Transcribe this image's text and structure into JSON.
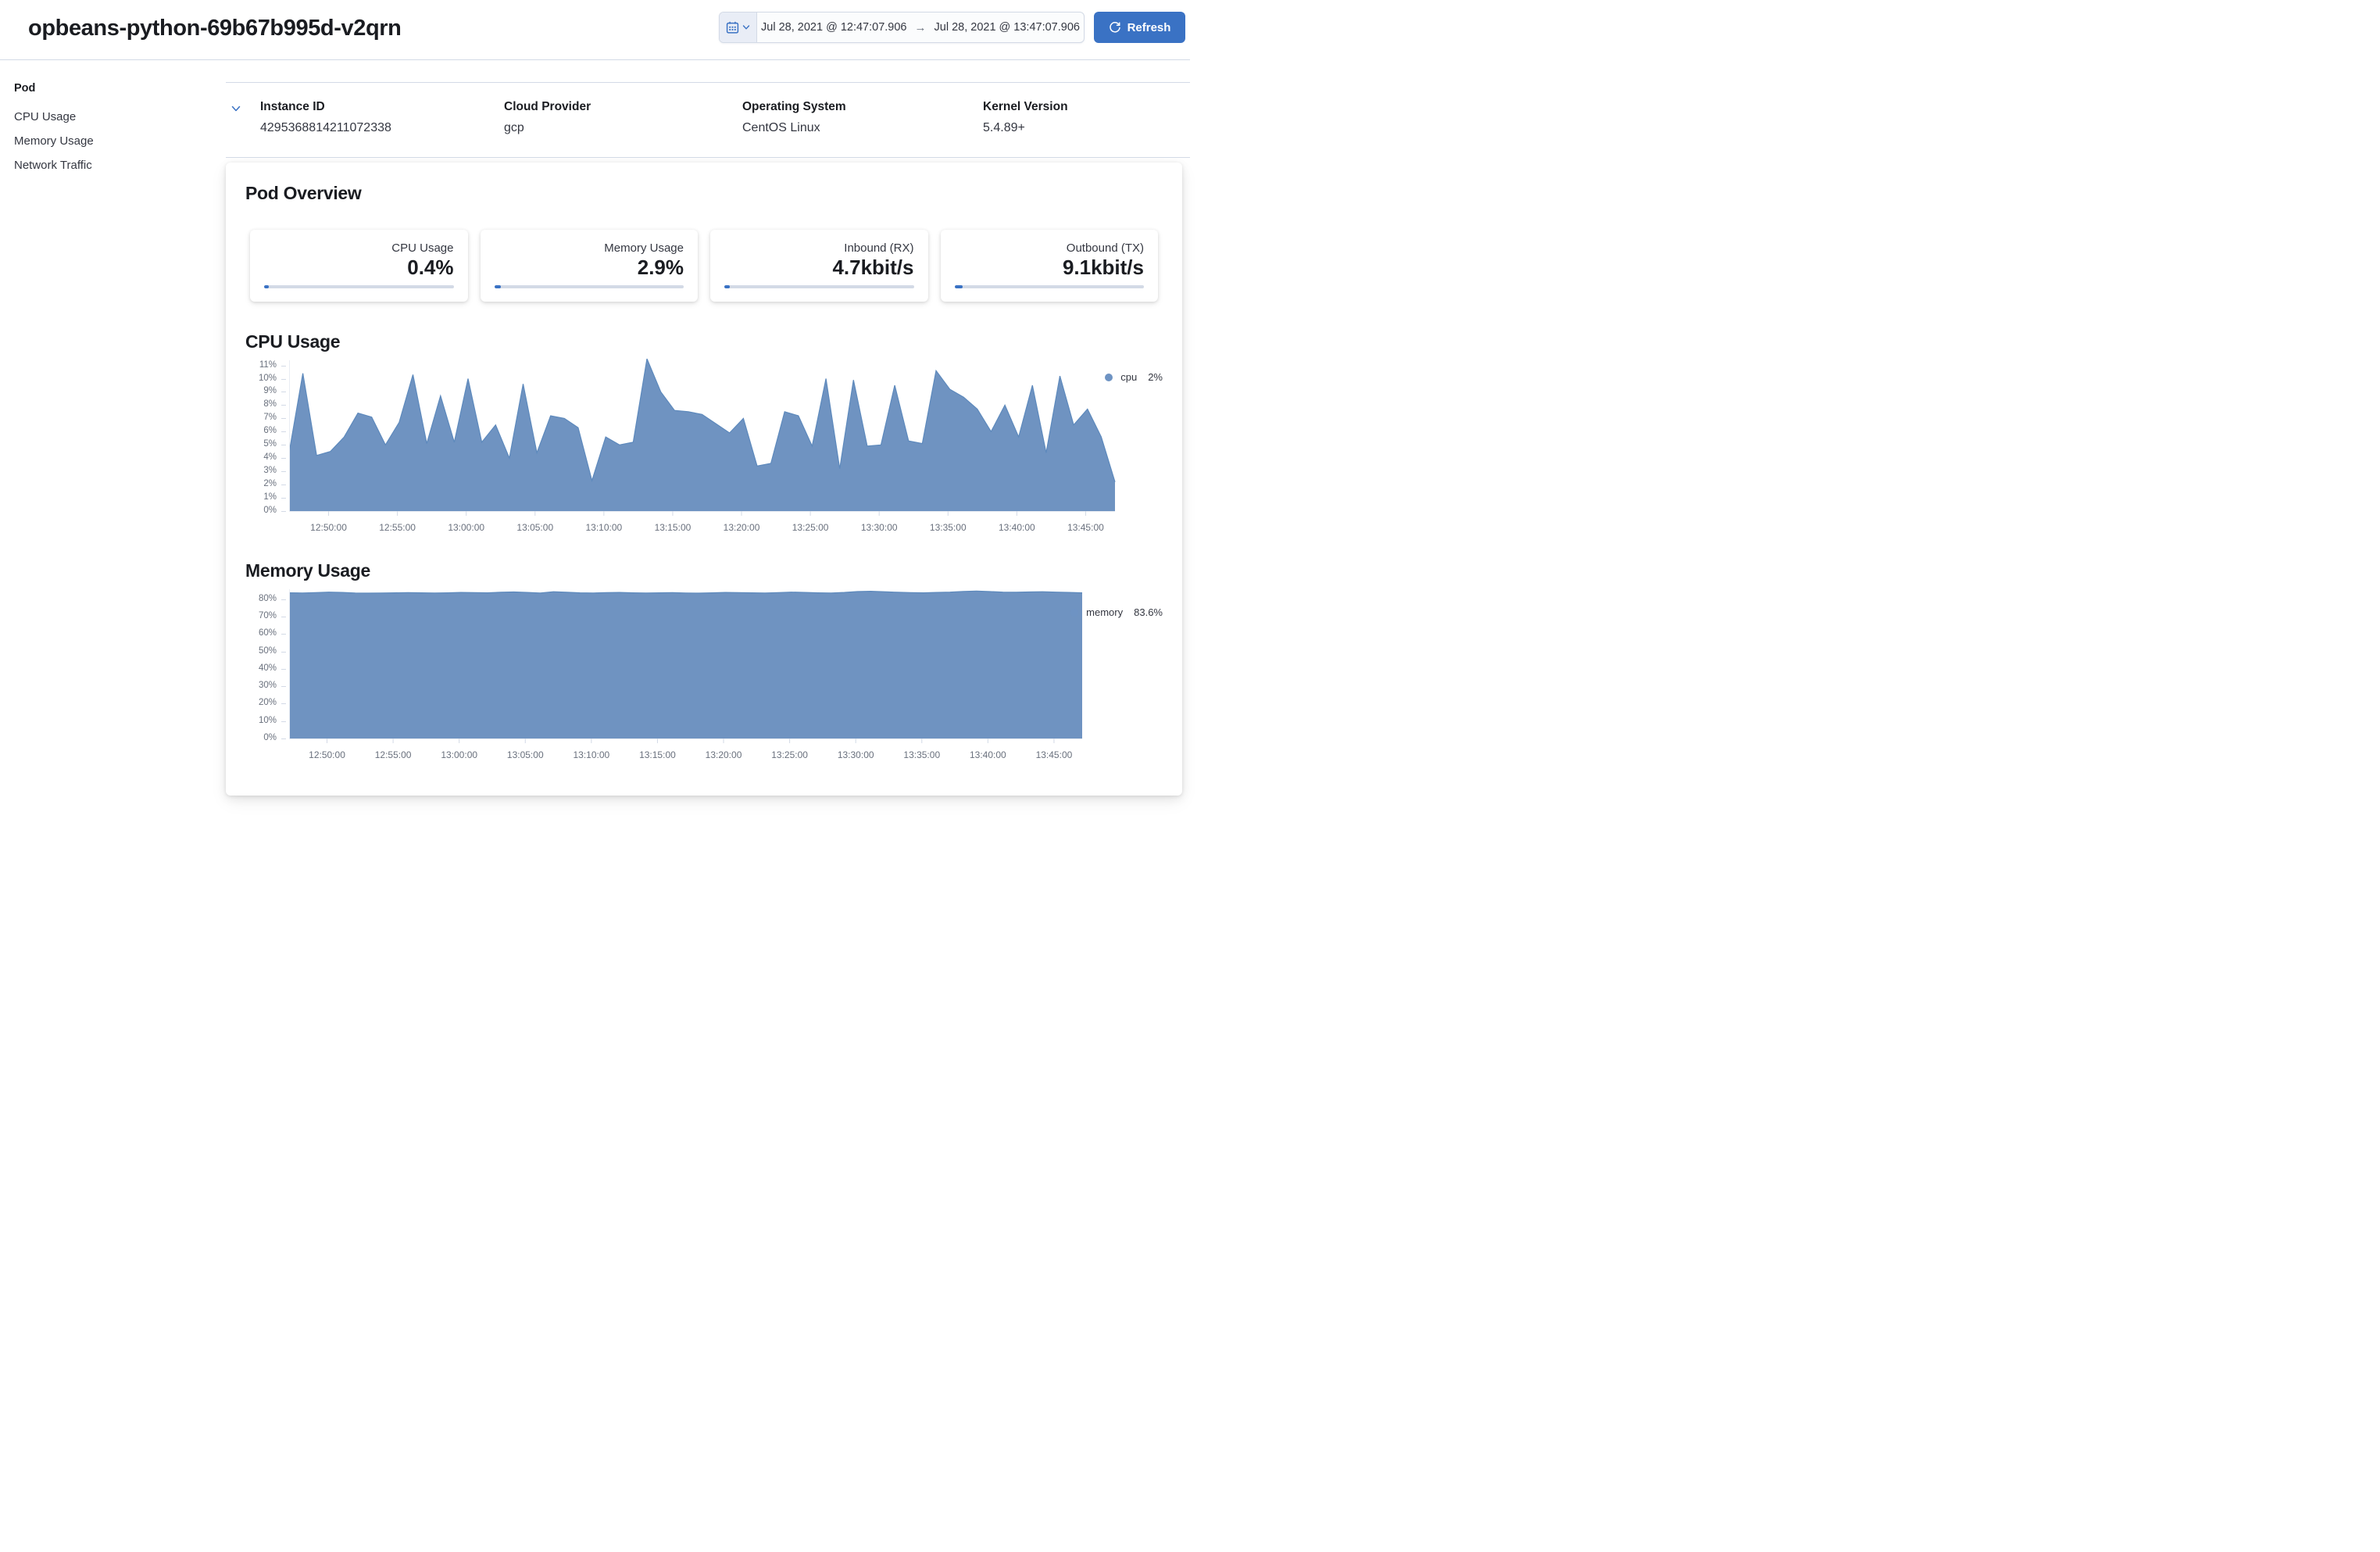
{
  "header": {
    "title": "opbeans-python-69b67b995d-v2qrn"
  },
  "datepicker": {
    "start": "Jul 28, 2021 @ 12:47:07.906",
    "end": "Jul 28, 2021 @ 13:47:07.906",
    "arrow": "→",
    "refresh_label": "Refresh"
  },
  "sidebar": {
    "heading": "Pod",
    "items": [
      {
        "label": "CPU Usage"
      },
      {
        "label": "Memory Usage"
      },
      {
        "label": "Network Traffic"
      }
    ]
  },
  "metadata": {
    "fields": [
      {
        "label": "Instance ID",
        "value": "4295368814211072338"
      },
      {
        "label": "Cloud Provider",
        "value": "gcp"
      },
      {
        "label": "Operating System",
        "value": "CentOS Linux"
      },
      {
        "label": "Kernel Version",
        "value": "5.4.89+"
      }
    ]
  },
  "overview": {
    "title": "Pod Overview",
    "metrics": [
      {
        "label": "CPU Usage",
        "value": "0.4%",
        "progress_pct": 2.4
      },
      {
        "label": "Memory Usage",
        "value": "2.9%",
        "progress_pct": 3.6
      },
      {
        "label": "Inbound (RX)",
        "value": "4.7kbit/s",
        "progress_pct": 3.0
      },
      {
        "label": "Outbound (TX)",
        "value": "9.1kbit/s",
        "progress_pct": 4.4
      }
    ]
  },
  "colors": {
    "accent_blue": "#3a72c4",
    "area_fill": "#6f93c1",
    "area_stroke": "#5d89bc",
    "axis_text": "#69707d",
    "border": "#d3dae6"
  },
  "chart_data": [
    {
      "type": "area",
      "title": "CPU Usage",
      "legend": {
        "label": "cpu",
        "value": "2%"
      },
      "x_start": "12:47:07.906",
      "x_end": "13:47:07.906",
      "x_step_seconds": 60,
      "x_ticks": [
        "12:50:00",
        "12:55:00",
        "13:00:00",
        "13:05:00",
        "13:10:00",
        "13:15:00",
        "13:20:00",
        "13:25:00",
        "13:30:00",
        "13:35:00",
        "13:40:00",
        "13:45:00"
      ],
      "y_ticks": [
        "0%",
        "1%",
        "2%",
        "3%",
        "4%",
        "5%",
        "6%",
        "7%",
        "8%",
        "9%",
        "10%",
        "11%"
      ],
      "ylim": [
        0,
        11.6
      ],
      "ylabel": "",
      "xlabel": "",
      "grid": false,
      "legend_position": "top-right",
      "series": [
        {
          "name": "cpu",
          "values": [
            4.4,
            10.4,
            4.2,
            4.5,
            5.6,
            7.4,
            7.1,
            5.0,
            6.7,
            10.3,
            5.1,
            8.7,
            5.2,
            10.0,
            5.2,
            6.5,
            4.0,
            9.6,
            4.4,
            7.2,
            7.0,
            6.3,
            2.3,
            5.6,
            5.0,
            5.2,
            11.5,
            9.0,
            7.6,
            7.5,
            7.3,
            6.6,
            5.9,
            7.0,
            3.4,
            3.6,
            7.5,
            7.2,
            4.9,
            10.0,
            3.2,
            9.9,
            4.9,
            5.0,
            9.5,
            5.3,
            5.1,
            10.6,
            9.2,
            8.6,
            7.7,
            6.0,
            8.0,
            5.6,
            9.5,
            4.4,
            10.2,
            6.5,
            7.7,
            5.6,
            2.2
          ]
        }
      ]
    },
    {
      "type": "area",
      "title": "Memory Usage",
      "legend": {
        "label": "memory",
        "value": "83.6%"
      },
      "x_start": "12:47:07.906",
      "x_end": "13:47:07.906",
      "x_step_seconds": 60,
      "x_ticks": [
        "12:50:00",
        "12:55:00",
        "13:00:00",
        "13:05:00",
        "13:10:00",
        "13:15:00",
        "13:20:00",
        "13:25:00",
        "13:30:00",
        "13:35:00",
        "13:40:00",
        "13:45:00"
      ],
      "y_ticks": [
        "0%",
        "10%",
        "20%",
        "30%",
        "40%",
        "50%",
        "60%",
        "70%",
        "80%"
      ],
      "ylim": [
        0,
        87
      ],
      "ylabel": "",
      "xlabel": "",
      "grid": false,
      "legend_position": "top-right",
      "series": [
        {
          "name": "memory",
          "values": [
            83.6,
            83.5,
            83.7,
            84.0,
            83.8,
            83.5,
            83.4,
            83.5,
            83.6,
            83.7,
            83.6,
            83.5,
            83.6,
            83.8,
            83.7,
            83.6,
            83.9,
            84.1,
            83.8,
            83.5,
            84.2,
            83.9,
            83.6,
            83.5,
            83.7,
            83.8,
            83.6,
            83.5,
            83.6,
            83.7,
            83.5,
            83.4,
            83.6,
            83.8,
            83.7,
            83.6,
            83.5,
            83.7,
            84.0,
            83.8,
            83.6,
            83.5,
            83.8,
            84.3,
            84.5,
            84.2,
            83.9,
            83.7,
            83.6,
            83.8,
            84.0,
            84.4,
            84.6,
            84.3,
            84.0,
            83.9,
            84.1,
            84.2,
            84.0,
            83.8,
            83.6
          ]
        }
      ]
    }
  ]
}
